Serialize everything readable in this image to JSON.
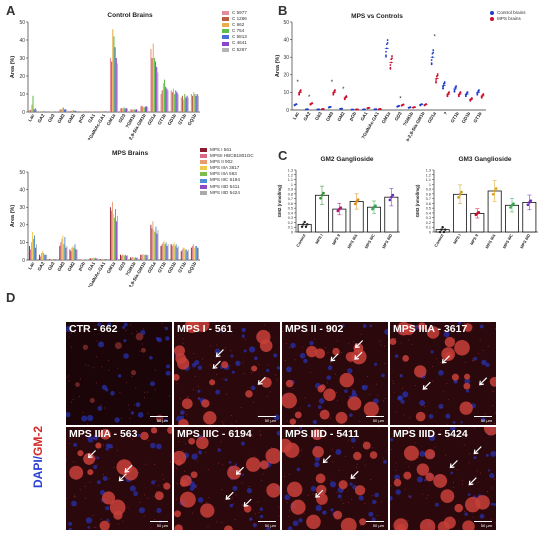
{
  "panels": {
    "a": "A",
    "b": "B",
    "c": "C",
    "d": "D"
  },
  "chart_data": [
    {
      "id": "control-brains",
      "type": "bar",
      "title": "Control Brains",
      "ylabel": "Area (%)",
      "ylim": [
        0,
        50
      ],
      "yticks": [
        0,
        10,
        20,
        30,
        40,
        50
      ],
      "categories": [
        "Lac",
        "GA2",
        "Gb3",
        "GM3",
        "GM2",
        "pGb",
        "GA1",
        "7GalNAc-GA1",
        "GM1a",
        "GD3",
        "7GD1b",
        "a-2,8-Sial-GM1b",
        "GD1a",
        "GT1b",
        "GD1b",
        "GT1b",
        "GQ1b"
      ],
      "category_labels": [
        "Lac",
        "GA2",
        "Gb3",
        "GM3",
        "GM2",
        "pGb",
        "GA1",
        "?GalNAc-GA1",
        "GM1a",
        "GD3",
        "?GM1b",
        "a-2,8-Sia-GM1b",
        "GD1a",
        "GT1b",
        "GD1b",
        "GT1b",
        "GQ1b"
      ],
      "series": [
        {
          "name": "C 5977",
          "color": "#e58a9a",
          "values": [
            1,
            0.3,
            0.2,
            1.5,
            0.6,
            0.1,
            0.2,
            0.3,
            30,
            2,
            1.5,
            3,
            35,
            10,
            12,
            8,
            10
          ]
        },
        {
          "name": "C 1266",
          "color": "#b95f45",
          "values": [
            1.2,
            0.2,
            0.2,
            1.3,
            0.5,
            0.1,
            0.2,
            0.3,
            28,
            2.2,
            1.4,
            3.5,
            30,
            12,
            11,
            9,
            9
          ]
        },
        {
          "name": "C 662",
          "color": "#e8b04a",
          "values": [
            4,
            0.4,
            0.3,
            2,
            0.8,
            0.2,
            0.4,
            0.5,
            46,
            1.8,
            1.2,
            2.8,
            38,
            16,
            13,
            7,
            11
          ]
        },
        {
          "name": "C 754",
          "color": "#5fbf4d",
          "values": [
            9,
            0.5,
            0.3,
            2.5,
            1,
            0.2,
            0.3,
            0.4,
            42,
            2.5,
            1.6,
            2.6,
            30,
            18,
            10,
            10,
            10
          ]
        },
        {
          "name": "C 5813",
          "color": "#4a6fd6",
          "values": [
            1.5,
            0.3,
            0.2,
            1.4,
            0.6,
            0.1,
            0.2,
            0.3,
            36,
            2,
            1.3,
            3,
            28,
            14,
            12,
            8,
            9
          ]
        },
        {
          "name": "C 4641",
          "color": "#8b45c9",
          "values": [
            2,
            0.3,
            0.3,
            1.6,
            0.7,
            0.1,
            0.3,
            0.4,
            30,
            2.1,
            1.5,
            3.2,
            25,
            13,
            11,
            9,
            10
          ]
        },
        {
          "name": "C 5267",
          "color": "#b4b4b4",
          "values": [
            1.3,
            0.2,
            0.2,
            1.2,
            0.5,
            0.1,
            0.2,
            0.3,
            27,
            1.9,
            1.2,
            2.7,
            22,
            12,
            10,
            8,
            9
          ]
        }
      ]
    },
    {
      "id": "mps-brains",
      "type": "bar",
      "title": "MPS Brains",
      "ylabel": "Area (%)",
      "ylim": [
        0,
        50
      ],
      "yticks": [
        0,
        10,
        20,
        30,
        40,
        50
      ],
      "categories": [
        "Lac",
        "GA2",
        "Gb3",
        "GM3",
        "GM2",
        "pGb",
        "GA1",
        "7GalNAc-GA1",
        "GM1a",
        "GD3",
        "7GD1b",
        "a-2,8-Sial-GM1b",
        "GD1a",
        "GT1b",
        "GD1b",
        "GT1b",
        "GQ1b"
      ],
      "category_labels": [
        "Lac",
        "GA2",
        "Gb3",
        "GM3",
        "GM2",
        "pGb",
        "GA1",
        "?GalNAc-GA1",
        "GM1a",
        "GD3",
        "?GM1b",
        "a-2,8-Sia-GM1b",
        "GD1a",
        "GT1b",
        "GD1b",
        "GT1b",
        "GQ1b"
      ],
      "series": [
        {
          "name": "MPS I 561",
          "color": "#8c1b2d",
          "values": [
            8,
            3,
            0.5,
            8,
            6,
            0.3,
            1,
            0.5,
            30,
            3,
            1.5,
            3,
            20,
            8,
            9,
            5,
            7
          ]
        },
        {
          "name": "MPSII HBCB1801OC",
          "color": "#d96a87",
          "values": [
            6,
            2,
            0.4,
            10,
            5,
            0.3,
            0.8,
            0.4,
            28,
            2.5,
            1.4,
            2.8,
            18,
            9,
            8,
            6,
            8
          ]
        },
        {
          "name": "MPS II 902",
          "color": "#e89b6f",
          "values": [
            10,
            4,
            0.5,
            12,
            7,
            0.4,
            1.2,
            0.6,
            33,
            3.2,
            1.7,
            3.4,
            22,
            10,
            9,
            7,
            9
          ]
        },
        {
          "name": "MPS IIIA 3617",
          "color": "#f0c94a",
          "values": [
            16,
            5,
            0.6,
            14,
            8,
            0.4,
            1.5,
            0.7,
            26,
            2.8,
            1.5,
            3,
            17,
            11,
            10,
            7,
            7
          ]
        },
        {
          "name": "MPS IIIA 563",
          "color": "#7dbd50",
          "values": [
            12,
            4,
            0.5,
            9,
            7,
            0.3,
            1.1,
            0.5,
            24,
            2.6,
            1.3,
            2.9,
            16,
            9,
            8,
            6,
            8
          ]
        },
        {
          "name": "MPS IIIC 6194",
          "color": "#4b8fd8",
          "values": [
            14,
            3,
            0.5,
            13,
            9,
            0.4,
            1.3,
            0.6,
            29,
            3,
            1.6,
            3.1,
            19,
            10,
            9,
            6,
            8
          ]
        },
        {
          "name": "MPS IIID 5411",
          "color": "#8a4bc4",
          "values": [
            7,
            3,
            0.4,
            7,
            6,
            0.3,
            0.9,
            0.4,
            22,
            2.4,
            1.2,
            2.7,
            15,
            8,
            7,
            5,
            7
          ]
        },
        {
          "name": "MPS IIID 5424",
          "color": "#aaaaaa",
          "values": [
            9,
            3,
            0.4,
            8,
            6,
            0.3,
            1,
            0.5,
            25,
            2.7,
            1.4,
            2.9,
            17,
            9,
            8,
            6,
            7
          ]
        }
      ]
    },
    {
      "id": "mps-vs-controls",
      "type": "scatter",
      "title": "MPS vs Controls",
      "ylabel": "Area (%)",
      "ylim": [
        0,
        50
      ],
      "yticks": [
        0,
        10,
        20,
        30,
        40,
        50
      ],
      "categories": [
        "Lac",
        "GA2",
        "Gb3",
        "GM3",
        "GM2",
        "pGb",
        "GA1",
        "?GalNAc-GA1",
        "GM1a",
        "GD3",
        "?GM1b",
        "a-2,8-Sia-GM1b",
        "GD1a",
        "?",
        "GT1b",
        "GD1b",
        "GT1b"
      ],
      "series": [
        {
          "name": "Control brains",
          "color": "#1f3ec9",
          "values": [
            3,
            0.4,
            0.3,
            1.6,
            0.7,
            0.2,
            0.3,
            0.4,
            35,
            2.1,
            1.4,
            3,
            30,
            14,
            12,
            9,
            10
          ]
        },
        {
          "name": "MPS brains",
          "color": "#c8102e",
          "values": [
            10,
            3.5,
            0.5,
            10,
            7,
            0.3,
            1.1,
            0.5,
            27,
            2.8,
            1.5,
            3,
            18,
            9,
            9,
            6,
            8
          ]
        }
      ],
      "sig": [
        0,
        1,
        3,
        4,
        9,
        12
      ]
    },
    {
      "id": "gm2-ganglioside",
      "type": "bar",
      "title": "GM2 Ganglioside",
      "ylabel": "GM2 (nmol/mg)",
      "ylim": [
        0,
        1.3
      ],
      "yticks": [
        0,
        0.1,
        0.2,
        0.3,
        0.4,
        0.5,
        0.6,
        0.7,
        0.8,
        0.9,
        1,
        1.1,
        1.2,
        1.3
      ],
      "categories": [
        "Control",
        "MPS I",
        "MPS II",
        "MPS IIIA",
        "MPS IIIC",
        "MPS IIID"
      ],
      "values": [
        0.16,
        0.77,
        0.48,
        0.64,
        0.52,
        0.73
      ],
      "colors": [
        "#222222",
        "#2f8f2f",
        "#b5157a",
        "#d98a12",
        "#2fa84a",
        "#6a2bb5"
      ]
    },
    {
      "id": "gm3-ganglioside",
      "type": "bar",
      "title": "GM3 Ganglioside",
      "ylabel": "GM3 (nmol/mg)",
      "ylim": [
        0,
        1.3
      ],
      "yticks": [
        0,
        0.1,
        0.2,
        0.3,
        0.4,
        0.5,
        0.6,
        0.7,
        0.8,
        0.9,
        1,
        1.1,
        1.2,
        1.3
      ],
      "categories": [
        "Control",
        "MPS I",
        "MPS II",
        "MPS IIIA",
        "MPS IIIC",
        "MPS IIID"
      ],
      "values": [
        0.05,
        0.79,
        0.39,
        0.86,
        0.56,
        0.62
      ],
      "colors": [
        "#222222",
        "#c89a1a",
        "#c8102e",
        "#d9a012",
        "#2fa84a",
        "#6a2bb5"
      ]
    }
  ],
  "micrographs": [
    {
      "label": "CTR - 662",
      "scale": "50 µm"
    },
    {
      "label": "MPS I - 561",
      "scale": "50 µm"
    },
    {
      "label": "MPS II - 902",
      "scale": "50 µm"
    },
    {
      "label": "MPS IIIA - 3617",
      "scale": "50 µm"
    },
    {
      "label": "MPS IIIA - 563",
      "scale": "50 µm"
    },
    {
      "label": "MPS IIIC - 6194",
      "scale": "50 µm"
    },
    {
      "label": "MPS IIID - 5411",
      "scale": "50 µm"
    },
    {
      "label": "MPS IIID - 5424",
      "scale": "50 µm"
    }
  ],
  "stain_label": {
    "dapi": "DAPI/",
    "gm2": "GM-2",
    "dapi_color": "#2a3fd6",
    "gm2_color": "#d42a2a"
  }
}
